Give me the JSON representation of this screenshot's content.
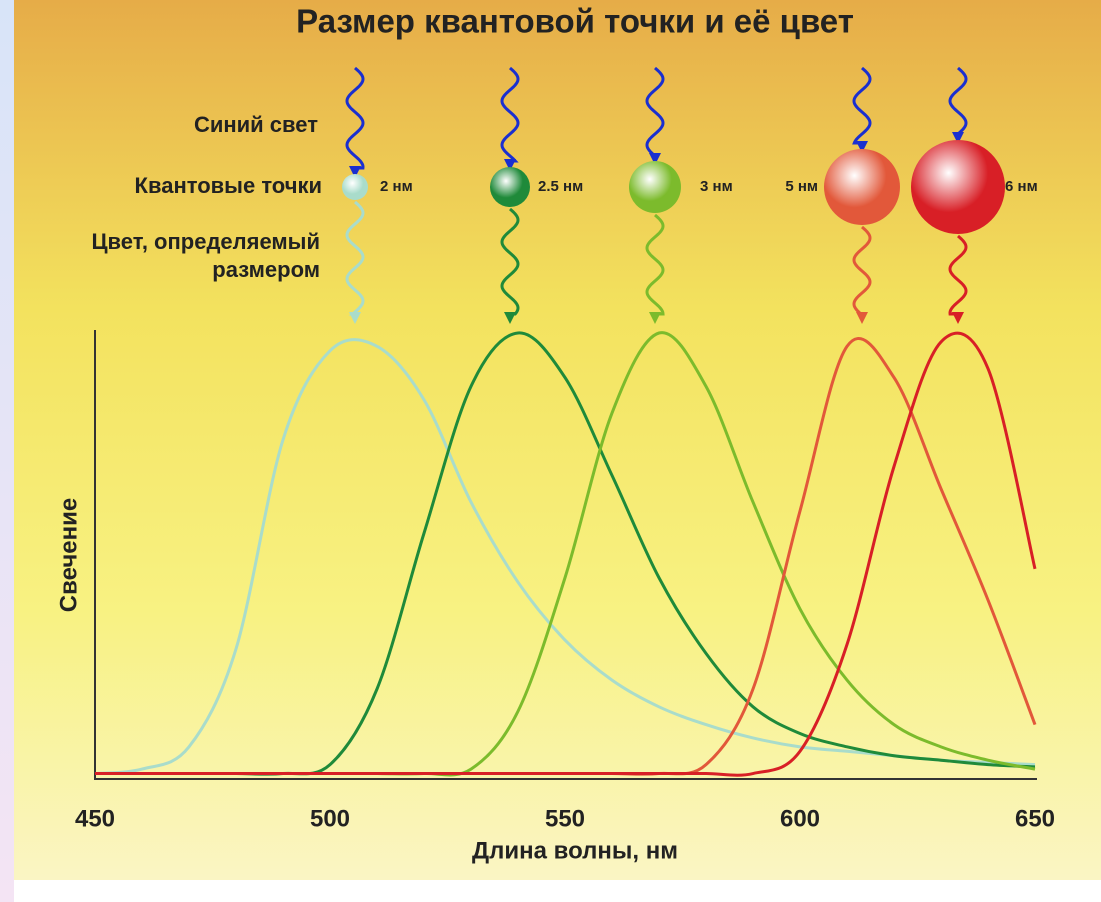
{
  "chart_data": {
    "type": "line",
    "title": "Размер квантовой точки и её цвет",
    "row_labels": {
      "light": "Синий свет",
      "dots": "Квантовые точки",
      "emission": "Цвет, определяемый размером"
    },
    "x_label": "Длина волны, нм",
    "y_label": "Свечение",
    "x": [
      450,
      460,
      470,
      480,
      490,
      500,
      510,
      520,
      530,
      540,
      550,
      560,
      570,
      580,
      590,
      600,
      610,
      620,
      630,
      640,
      650
    ],
    "xlim": [
      450,
      650
    ],
    "xticks": [
      450,
      500,
      550,
      600,
      650
    ],
    "ylim": [
      0,
      1
    ],
    "grid": false,
    "series": [
      {
        "name": "2 нм",
        "color": "#a9dccb",
        "values": [
          0.01,
          0.02,
          0.07,
          0.29,
          0.76,
          0.96,
          0.97,
          0.85,
          0.62,
          0.44,
          0.31,
          0.22,
          0.16,
          0.12,
          0.09,
          0.07,
          0.06,
          0.05,
          0.04,
          0.035,
          0.03
        ]
      },
      {
        "name": "2.5 нм",
        "color": "#1f8a3a",
        "values": [
          0.01,
          0.01,
          0.01,
          0.01,
          0.01,
          0.03,
          0.2,
          0.55,
          0.88,
          1.0,
          0.9,
          0.68,
          0.45,
          0.28,
          0.16,
          0.1,
          0.07,
          0.05,
          0.04,
          0.03,
          0.025
        ]
      },
      {
        "name": "3 нм",
        "color": "#7cbb2c",
        "values": [
          0.01,
          0.01,
          0.01,
          0.01,
          0.01,
          0.01,
          0.01,
          0.01,
          0.02,
          0.15,
          0.45,
          0.82,
          1.0,
          0.88,
          0.62,
          0.38,
          0.22,
          0.12,
          0.07,
          0.04,
          0.02
        ]
      },
      {
        "name": "5 нм",
        "color": "#e2583a",
        "values": [
          0.01,
          0.01,
          0.01,
          0.01,
          0.01,
          0.01,
          0.01,
          0.01,
          0.01,
          0.01,
          0.01,
          0.01,
          0.01,
          0.03,
          0.2,
          0.6,
          0.97,
          0.9,
          0.65,
          0.4,
          0.12
        ]
      },
      {
        "name": "6 нм",
        "color": "#d81f26",
        "values": [
          0.01,
          0.01,
          0.01,
          0.01,
          0.01,
          0.01,
          0.01,
          0.01,
          0.01,
          0.01,
          0.01,
          0.01,
          0.01,
          0.01,
          0.01,
          0.06,
          0.3,
          0.7,
          0.98,
          0.92,
          0.47
        ]
      }
    ]
  }
}
